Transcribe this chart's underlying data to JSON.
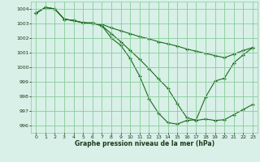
{
  "title": "Graphe pression niveau de la mer (hPa)",
  "background_color": "#d8f0e8",
  "grid_color": "#88cc99",
  "line_color": "#1a6b1a",
  "x_ticks": [
    0,
    1,
    2,
    3,
    4,
    5,
    6,
    7,
    8,
    9,
    10,
    11,
    12,
    13,
    14,
    15,
    16,
    17,
    18,
    19,
    20,
    21,
    22,
    23
  ],
  "ylim": [
    995.5,
    1004.5
  ],
  "xlim": [
    -0.5,
    23.5
  ],
  "yticks": [
    996,
    997,
    998,
    999,
    1000,
    1001,
    1002,
    1003,
    1004
  ],
  "line1_x": [
    0,
    1,
    2,
    3,
    4,
    5,
    6,
    7,
    8,
    9,
    10,
    11,
    12,
    13,
    14,
    15,
    16,
    17,
    18,
    19,
    20,
    21,
    22,
    23
  ],
  "line1_y": [
    1003.7,
    1004.1,
    1004.0,
    1003.3,
    1003.2,
    1003.05,
    1003.0,
    1002.95,
    1002.7,
    1002.5,
    1002.3,
    1002.1,
    1001.95,
    1001.75,
    1001.6,
    1001.45,
    1001.25,
    1001.1,
    1000.95,
    1000.8,
    1000.65,
    1000.9,
    1001.15,
    1001.35
  ],
  "line2_x": [
    0,
    1,
    2,
    3,
    4,
    5,
    6,
    7,
    8,
    9,
    10,
    11,
    12,
    13,
    14,
    15,
    16,
    17,
    18,
    19,
    20,
    21,
    22,
    23
  ],
  "line2_y": [
    1003.7,
    1004.1,
    1004.0,
    1003.3,
    1003.2,
    1003.05,
    1003.0,
    1002.85,
    1002.3,
    1001.75,
    1001.15,
    1000.55,
    999.9,
    999.2,
    998.55,
    997.5,
    996.55,
    996.35,
    996.45,
    996.35,
    996.4,
    996.75,
    997.1,
    997.45
  ],
  "line3_x": [
    0,
    1,
    2,
    3,
    4,
    5,
    6,
    7,
    8,
    9,
    10,
    11,
    12,
    13,
    14,
    15,
    16,
    17,
    18,
    19,
    20,
    21,
    22,
    23
  ],
  "line3_y": [
    1003.7,
    1004.1,
    1004.0,
    1003.3,
    1003.2,
    1003.05,
    1003.05,
    1002.85,
    1002.0,
    1001.5,
    1000.6,
    999.4,
    997.85,
    996.85,
    996.2,
    996.1,
    996.35,
    996.4,
    997.95,
    999.05,
    999.25,
    1000.3,
    1000.85,
    1001.35
  ]
}
